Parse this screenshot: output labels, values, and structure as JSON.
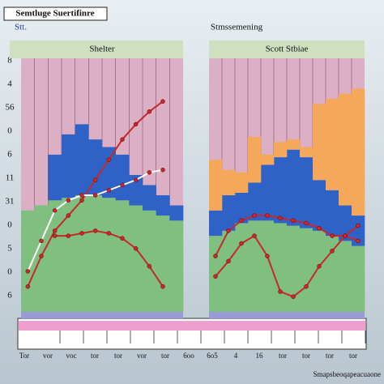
{
  "title": "Semtluge Suertifinre",
  "subtitle": "Stt.",
  "heading": "Stmssemening",
  "axis_labels": [
    "8",
    "4",
    "56",
    "0",
    "6",
    "11",
    "31",
    "0",
    "5",
    "0",
    "6"
  ],
  "x_labels": [
    "Tor",
    "vor",
    "voc",
    "tor",
    "tor",
    "vor",
    "tor",
    "6oo",
    "6o5",
    "4",
    "16",
    "tor",
    "tor",
    "tor",
    "tor"
  ],
  "footer": "Smapsbeoqapeacuaone",
  "chart_data": [
    {
      "type": "combo",
      "title": "Shelter",
      "ylim": [
        0,
        100
      ],
      "categories": [
        null,
        null,
        null,
        null,
        null,
        null,
        null,
        null,
        null,
        null,
        null,
        null
      ],
      "series": [
        {
          "kind": "bar",
          "color": "#7fbf7f",
          "values": [
            40,
            42,
            44,
            45,
            46,
            46,
            45,
            44,
            42,
            40,
            38,
            36
          ]
        },
        {
          "kind": "bar",
          "color": "#2f62c6",
          "values": [
            0,
            0,
            18,
            25,
            28,
            22,
            20,
            18,
            12,
            10,
            8,
            6
          ]
        },
        {
          "kind": "line",
          "color": "#c8282a",
          "values": [
            10,
            22,
            32,
            38,
            44,
            52,
            60,
            68,
            74,
            79,
            83,
            null
          ]
        },
        {
          "kind": "line",
          "color": "#c8282a",
          "values": [
            null,
            null,
            30,
            30,
            31,
            32,
            31,
            29,
            25,
            18,
            10,
            null
          ]
        },
        {
          "kind": "line",
          "color": "#ffffff",
          "values": [
            16,
            28,
            40,
            44,
            46,
            46,
            48,
            50,
            52,
            55,
            56,
            null
          ]
        }
      ]
    },
    {
      "type": "combo",
      "title": "Scott Stbiae",
      "ylim": [
        0,
        100
      ],
      "categories": [
        null,
        null,
        null,
        null,
        null,
        null,
        null,
        null,
        null,
        null,
        null,
        null
      ],
      "series": [
        {
          "kind": "bar",
          "color": "#7fbf7f",
          "values": [
            30,
            32,
            35,
            36,
            36,
            35,
            34,
            33,
            32,
            30,
            28,
            26
          ]
        },
        {
          "kind": "bar",
          "color": "#2f62c6",
          "values": [
            10,
            14,
            12,
            15,
            22,
            26,
            30,
            28,
            20,
            18,
            14,
            12
          ]
        },
        {
          "kind": "bar",
          "color": "#f6a85a",
          "values": [
            20,
            10,
            8,
            18,
            4,
            6,
            4,
            4,
            30,
            36,
            44,
            50
          ]
        },
        {
          "kind": "line",
          "color": "#c8282a",
          "values": [
            22,
            32,
            36,
            38,
            38,
            37,
            36,
            35,
            33,
            30,
            30,
            28
          ]
        },
        {
          "kind": "line",
          "color": "#c8282a",
          "values": [
            14,
            20,
            27,
            30,
            22,
            8,
            6,
            10,
            18,
            24,
            30,
            34
          ]
        }
      ]
    }
  ]
}
